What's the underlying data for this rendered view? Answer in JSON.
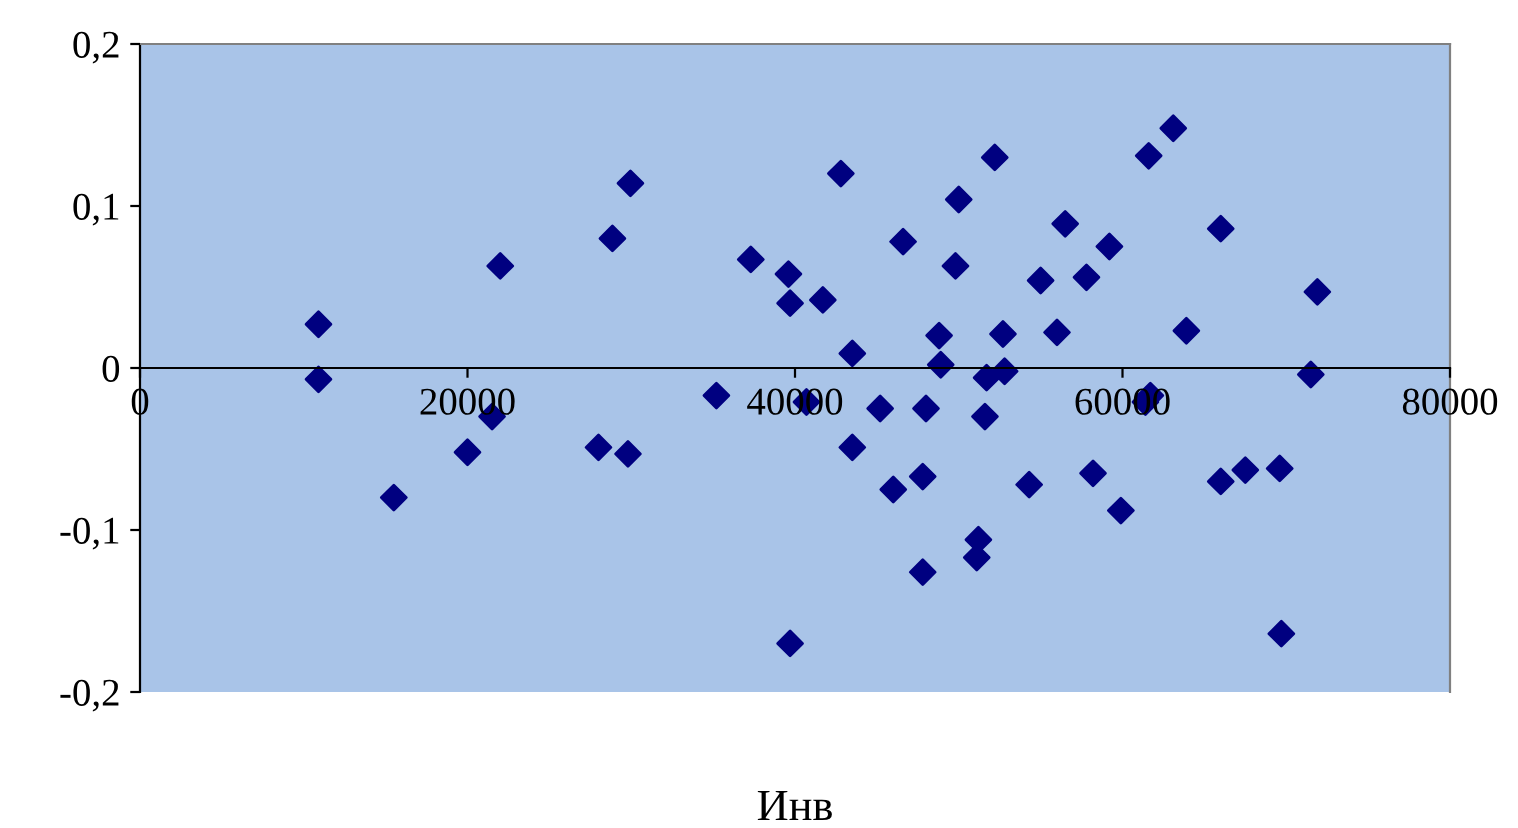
{
  "chart_data": {
    "type": "scatter",
    "xlabel": "Инв",
    "marker": "diamond",
    "grid": false,
    "legend": false,
    "xlim": [
      0,
      80000
    ],
    "ylim": [
      -0.2,
      0.2
    ],
    "xticks": [
      0,
      20000,
      40000,
      60000,
      80000
    ],
    "yticks": [
      {
        "value": -0.2,
        "label": "-0,2"
      },
      {
        "value": -0.1,
        "label": "-0,1"
      },
      {
        "value": 0,
        "label": "0"
      },
      {
        "value": 0.1,
        "label": "0,1"
      },
      {
        "value": 0.2,
        "label": "0,2"
      }
    ],
    "series": [
      {
        "color": "#000080",
        "x": [
          10900,
          10900,
          15500,
          20000,
          21500,
          22000,
          28000,
          28850,
          29800,
          29950,
          35200,
          37300,
          39600,
          39700,
          39700,
          40700,
          41700,
          42800,
          43500,
          43500,
          45200,
          46000,
          46600,
          47800,
          47800,
          48000,
          48800,
          48900,
          49800,
          50000,
          51200,
          51100,
          51600,
          51700,
          52200,
          52700,
          52800,
          54300,
          55000,
          56000,
          56500,
          57800,
          58200,
          59200,
          59900,
          61400,
          61600,
          61700,
          63100,
          63900,
          66000,
          66000,
          67500,
          69600,
          69700,
          71500,
          71900
        ],
        "values": [
          0.027,
          -0.007,
          -0.08,
          -0.052,
          -0.03,
          0.063,
          -0.049,
          0.08,
          -0.053,
          0.114,
          -0.017,
          0.067,
          0.058,
          0.04,
          -0.17,
          -0.021,
          0.042,
          0.12,
          0.009,
          -0.049,
          -0.025,
          -0.075,
          0.078,
          -0.067,
          -0.126,
          -0.025,
          0.02,
          0.002,
          0.063,
          0.104,
          -0.106,
          -0.117,
          -0.03,
          -0.006,
          0.13,
          0.021,
          -0.002,
          -0.072,
          0.054,
          0.022,
          0.089,
          0.056,
          -0.065,
          0.075,
          -0.088,
          -0.021,
          0.131,
          -0.017,
          0.148,
          0.023,
          0.086,
          -0.07,
          -0.063,
          -0.062,
          -0.164,
          -0.004,
          0.047
        ]
      }
    ]
  }
}
